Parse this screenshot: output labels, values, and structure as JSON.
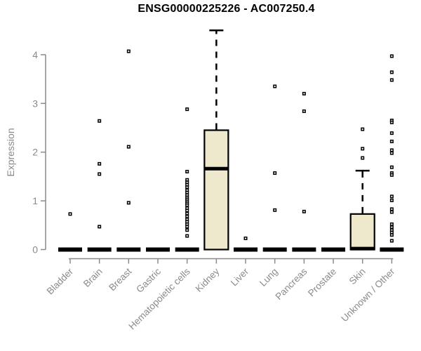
{
  "title": "ENSG00000225226 - AC007250.4",
  "colors": {
    "background": "#FFFFFF",
    "box_fill": "#EEE8CD",
    "line": "#000000",
    "axis": "#8A8A8A",
    "title_color": "#000000"
  },
  "chart_data": {
    "type": "boxplot",
    "title": "ENSG00000225226 - AC007250.4",
    "xlabel": "",
    "ylabel": "Expression",
    "ylim": [
      0,
      4.6
    ],
    "yticks": [
      0,
      1,
      2,
      3,
      4
    ],
    "grid": false,
    "categories": [
      "Bladder",
      "Brain",
      "Breast",
      "Gastric",
      "Hematopoietic cells",
      "Kidney",
      "Liver",
      "Lung",
      "Pancreas",
      "Prostate",
      "Skin",
      "Unknown / Other"
    ],
    "series": [
      {
        "label": "Bladder",
        "q1": 0,
        "median": 0,
        "q3": 0,
        "whisker_low": 0,
        "whisker_high": 0,
        "outliers": [
          0.73
        ]
      },
      {
        "label": "Brain",
        "q1": 0,
        "median": 0,
        "q3": 0,
        "whisker_low": 0,
        "whisker_high": 0,
        "outliers": [
          2.64,
          1.76,
          1.55,
          0.47
        ]
      },
      {
        "label": "Breast",
        "q1": 0,
        "median": 0,
        "q3": 0,
        "whisker_low": 0,
        "whisker_high": 0,
        "outliers": [
          4.07,
          2.11,
          0.96
        ]
      },
      {
        "label": "Gastric",
        "q1": 0,
        "median": 0,
        "q3": 0,
        "whisker_low": 0,
        "whisker_high": 0,
        "outliers": []
      },
      {
        "label": "Hematopoietic cells",
        "q1": 0,
        "median": 0,
        "q3": 0,
        "whisker_low": 0,
        "whisker_high": 0,
        "outliers": [
          2.88,
          1.6,
          1.43,
          1.38,
          1.33,
          1.28,
          1.22,
          1.17,
          1.12,
          1.07,
          1.03,
          0.99,
          0.95,
          0.91,
          0.85,
          0.8,
          0.74,
          0.68,
          0.62,
          0.57,
          0.52,
          0.47,
          0.4,
          0.28
        ]
      },
      {
        "label": "Kidney",
        "q1": 0,
        "median": 1.66,
        "q3": 2.45,
        "whisker_low": 0,
        "whisker_high": 4.5,
        "outliers": []
      },
      {
        "label": "Liver",
        "q1": 0,
        "median": 0,
        "q3": 0,
        "whisker_low": 0,
        "whisker_high": 0,
        "outliers": [
          0.23
        ]
      },
      {
        "label": "Lung",
        "q1": 0,
        "median": 0,
        "q3": 0,
        "whisker_low": 0,
        "whisker_high": 0,
        "outliers": [
          3.35,
          1.57,
          0.81
        ]
      },
      {
        "label": "Pancreas",
        "q1": 0,
        "median": 0,
        "q3": 0,
        "whisker_low": 0,
        "whisker_high": 0,
        "outliers": [
          3.2,
          2.84,
          0.78
        ]
      },
      {
        "label": "Prostate",
        "q1": 0,
        "median": 0,
        "q3": 0,
        "whisker_low": 0,
        "whisker_high": 0,
        "outliers": []
      },
      {
        "label": "Skin",
        "q1": 0,
        "median": 0.02,
        "q3": 0.73,
        "whisker_low": 0,
        "whisker_high": 1.62,
        "outliers": [
          2.47,
          2.07,
          1.88
        ]
      },
      {
        "label": "Unknown / Other",
        "q1": 0,
        "median": 0,
        "q3": 0,
        "whisker_low": 0,
        "whisker_high": 0,
        "outliers": [
          3.97,
          3.64,
          3.48,
          2.65,
          2.61,
          2.39,
          2.22,
          2.04,
          1.98,
          1.69,
          1.57,
          1.53,
          1.09,
          1.01,
          0.83,
          0.77,
          0.52,
          0.46,
          0.4,
          0.35,
          0.3,
          0.18
        ]
      }
    ]
  }
}
